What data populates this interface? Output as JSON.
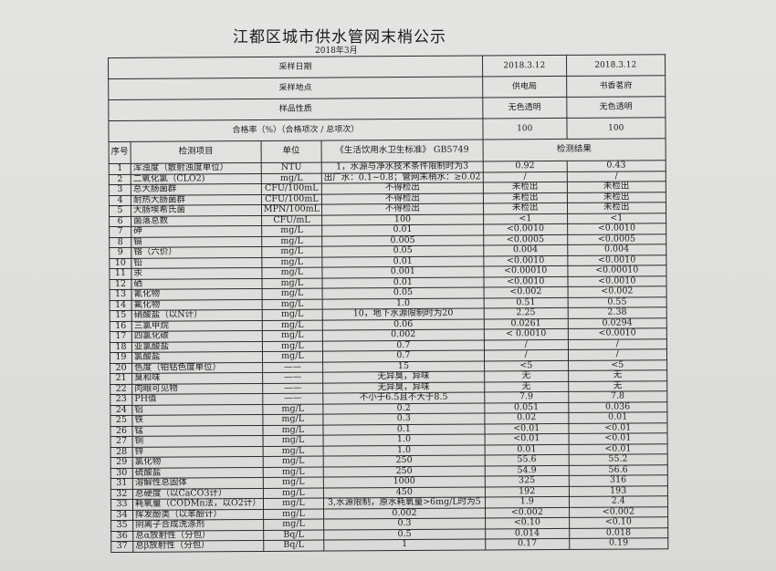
{
  "title": "江都区城市供水管网末梢公示",
  "subtitle": "2018年3月",
  "summary": [
    {
      "label": "采样日期",
      "values": [
        "2018.3.12",
        "2018.3.12"
      ]
    },
    {
      "label": "采样地点",
      "values": [
        "供电局",
        "书香茗府"
      ]
    },
    {
      "label": "样品性质",
      "values": [
        "无色透明",
        "无色透明"
      ]
    },
    {
      "label": "合格率（%）（合格项次 / 总项次）",
      "values": [
        "100",
        "100"
      ]
    }
  ],
  "columns": {
    "seq": "序号",
    "item": "检测项目",
    "unit": "单位",
    "standard": "《生活饮用水卫生标准》 GB5749",
    "result": "检测结果"
  },
  "rows": [
    [
      "1",
      "浑浊度（散射浊度单位）",
      "NTU",
      "1，水源与净水技术条件限制时为3",
      "0.92",
      "0.43"
    ],
    [
      "2",
      "二氧化氯（CLO2)",
      "mg/L",
      "出厂水：0.1~0.8；管网末梢水：≥0.02",
      "/",
      "/"
    ],
    [
      "3",
      "总大肠菌群",
      "CFU/100mL",
      "不得检出",
      "未检出",
      "未检出"
    ],
    [
      "4",
      "耐热大肠菌群",
      "CFU/100mL",
      "不得检出",
      "未检出",
      "未检出"
    ],
    [
      "5",
      "大肠埃希氏菌",
      "MPN/100mL",
      "不得检出",
      "未检出",
      "未检出"
    ],
    [
      "6",
      "菌落总数",
      "CFU/mL",
      "100",
      "<1",
      "<1"
    ],
    [
      "7",
      "砷",
      "mg/L",
      "0.01",
      "<0.0010",
      "<0.0010"
    ],
    [
      "8",
      "镉",
      "mg/L",
      "0.005",
      "<0.0005",
      "<0.0005"
    ],
    [
      "9",
      "铬（六价）",
      "mg/L",
      "0.05",
      "0.004",
      "0.004"
    ],
    [
      "10",
      "铅",
      "mg/L",
      "0.01",
      "<0.0010",
      "<0.0010"
    ],
    [
      "11",
      "汞",
      "mg/L",
      "0.001",
      "<0.00010",
      "<0.00010"
    ],
    [
      "12",
      "硒",
      "mg/L",
      "0.01",
      "<0.0010",
      "<0.0010"
    ],
    [
      "13",
      "氰化物",
      "mg/L",
      "0.05",
      "<0.002",
      "<0.002"
    ],
    [
      "14",
      "氟化物",
      "mg/L",
      "1.0",
      "0.51",
      "0.55"
    ],
    [
      "15",
      "硝酸盐（以N计）",
      "mg/L",
      "10，地下水源限制时为20",
      "2.25",
      "2.38"
    ],
    [
      "16",
      "三氯甲烷",
      "mg/L",
      "0.06",
      "0.0261",
      "0.0294"
    ],
    [
      "17",
      "四氯化碳",
      "mg/L",
      "0.002",
      "< 0.0010",
      "<0.0010"
    ],
    [
      "18",
      "亚氯酸盐",
      "mg/L",
      "0.7",
      "/",
      "/"
    ],
    [
      "19",
      "氯酸盐",
      "mg/L",
      "0.7",
      "/",
      "/"
    ],
    [
      "20",
      "色度（铂钴色度单位）",
      "——",
      "15",
      "<5",
      "<5"
    ],
    [
      "21",
      "臭和味",
      "——",
      "无异臭，异味",
      "无",
      "无"
    ],
    [
      "22",
      "肉眼可见物",
      "——",
      "无异臭，异味",
      "无",
      "无"
    ],
    [
      "23",
      "PH值",
      "——",
      "不小于6.5且不大于8.5",
      "7.9",
      "7.8"
    ],
    [
      "24",
      "铝",
      "mg/L",
      "0.2",
      "0.051",
      "0.036"
    ],
    [
      "25",
      "铁",
      "mg/L",
      "0.3",
      "0.02",
      "0.01"
    ],
    [
      "26",
      "锰",
      "mg/L",
      "0.1",
      "<0.01",
      "<0.01"
    ],
    [
      "27",
      "铜",
      "mg/L",
      "1.0",
      "<0.01",
      "<0.01"
    ],
    [
      "28",
      "锌",
      "mg/L",
      "1.0",
      "0.01",
      "<0.01"
    ],
    [
      "29",
      "氯化物",
      "mg/L",
      "250",
      "55.6",
      "55.2"
    ],
    [
      "30",
      "硫酸盐",
      "mg/L",
      "250",
      "54.9",
      "56.6"
    ],
    [
      "31",
      "溶解性总固体",
      "mg/L",
      "1000",
      "325",
      "316"
    ],
    [
      "32",
      "总硬度（以CaCO3计）",
      "mg/L",
      "450",
      "192",
      "193"
    ],
    [
      "33",
      "耗氧量（CODMn法，以O2计）",
      "mg/L",
      "3,水源限制，原水耗氧量>6mg/L时为5",
      "1.9",
      "2.4"
    ],
    [
      "34",
      "挥发酚类（以苯酚计）",
      "mg/L",
      "0.002",
      "<0.002",
      "<0.002"
    ],
    [
      "35",
      "阴离子合成洗涤剂",
      "mg/L",
      "0.3",
      "<0.10",
      "<0.10"
    ],
    [
      "36",
      "总α放射性（分包）",
      "Bq/L",
      "0.5",
      "0.014",
      "0.018"
    ],
    [
      "37",
      "总β放射性（分包）",
      "Bq/L",
      "1",
      "0.17",
      "0.19"
    ]
  ]
}
